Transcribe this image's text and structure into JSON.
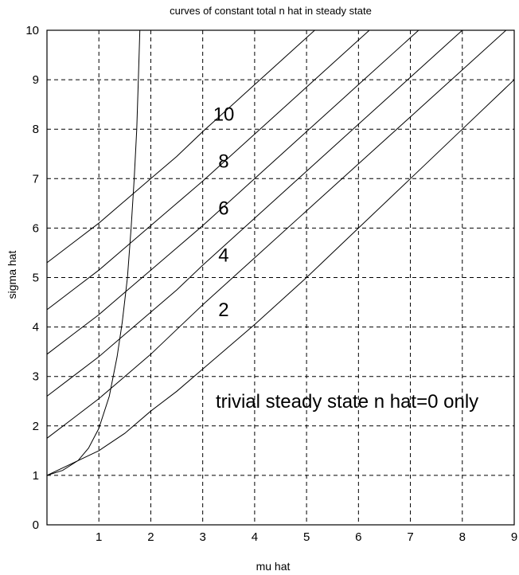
{
  "chart_data": {
    "type": "line",
    "title": "curves of constant total n hat in steady state",
    "xlabel": "mu hat",
    "ylabel": "sigma hat",
    "xlim": [
      0,
      9
    ],
    "ylim": [
      0,
      10
    ],
    "xticks": [
      1,
      2,
      3,
      4,
      5,
      6,
      7,
      8,
      9
    ],
    "yticks": [
      0,
      1,
      2,
      3,
      4,
      5,
      6,
      7,
      8,
      9,
      10
    ],
    "grid": true,
    "series": [
      {
        "name": "",
        "x": [
          0,
          0.5,
          1,
          1.5,
          2,
          2.5,
          3,
          4,
          5,
          6,
          7,
          8,
          9
        ],
        "y": [
          1,
          1.25,
          1.5,
          1.85,
          2.3,
          2.7,
          3.15,
          4.05,
          5.0,
          6.0,
          7.0,
          8.0,
          9.0
        ]
      },
      {
        "name": "",
        "x": [
          0,
          0.5,
          1,
          1.5,
          2,
          2.5,
          3,
          4,
          5,
          6,
          7,
          8,
          9
        ],
        "y": [
          1.75,
          2.15,
          2.55,
          3.0,
          3.45,
          3.95,
          4.45,
          5.4,
          6.35,
          7.3,
          8.25,
          9.2,
          10.15
        ]
      },
      {
        "name": "",
        "x": [
          0,
          0.5,
          1,
          1.5,
          2,
          2.5,
          3,
          4,
          5,
          6,
          7,
          8
        ],
        "y": [
          2.6,
          3.0,
          3.4,
          3.85,
          4.3,
          4.75,
          5.25,
          6.2,
          7.15,
          8.1,
          9.05,
          10.0
        ]
      },
      {
        "name": "",
        "x": [
          0,
          0.5,
          1,
          1.5,
          2,
          2.5,
          3,
          4,
          5,
          6,
          7,
          8
        ],
        "y": [
          3.45,
          3.85,
          4.25,
          4.7,
          5.15,
          5.6,
          6.05,
          7.0,
          7.95,
          8.9,
          9.85,
          10.8
        ]
      },
      {
        "name": "",
        "x": [
          0,
          0.5,
          1,
          1.5,
          2,
          2.5,
          3,
          4,
          5,
          6,
          7
        ],
        "y": [
          4.35,
          4.75,
          5.15,
          5.6,
          6.05,
          6.5,
          6.95,
          7.9,
          8.85,
          9.8,
          10.75
        ]
      },
      {
        "name": "",
        "x": [
          0,
          0.5,
          1,
          1.5,
          2,
          2.5,
          3,
          4,
          5,
          6
        ],
        "y": [
          5.3,
          5.7,
          6.1,
          6.55,
          7.0,
          7.45,
          7.95,
          8.9,
          9.85,
          10.8
        ]
      },
      {
        "name": "",
        "x": [
          0,
          0.3,
          0.6,
          0.8,
          1.0,
          1.2,
          1.35,
          1.45,
          1.55,
          1.62,
          1.68,
          1.73,
          1.76,
          1.79
        ],
        "y": [
          1,
          1.1,
          1.3,
          1.55,
          1.95,
          2.6,
          3.4,
          4.1,
          5.0,
          6.0,
          7.0,
          8.0,
          9.0,
          10.0
        ]
      }
    ],
    "annotations": [
      {
        "text": "10",
        "x": 3.2,
        "y": 8.3
      },
      {
        "text": "8",
        "x": 3.3,
        "y": 7.35
      },
      {
        "text": "6",
        "x": 3.3,
        "y": 6.4
      },
      {
        "text": "4",
        "x": 3.3,
        "y": 5.45
      },
      {
        "text": "2",
        "x": 3.3,
        "y": 4.35
      },
      {
        "text": "trivial steady state n hat=0 only",
        "x": 3.25,
        "y": 2.5
      }
    ]
  }
}
